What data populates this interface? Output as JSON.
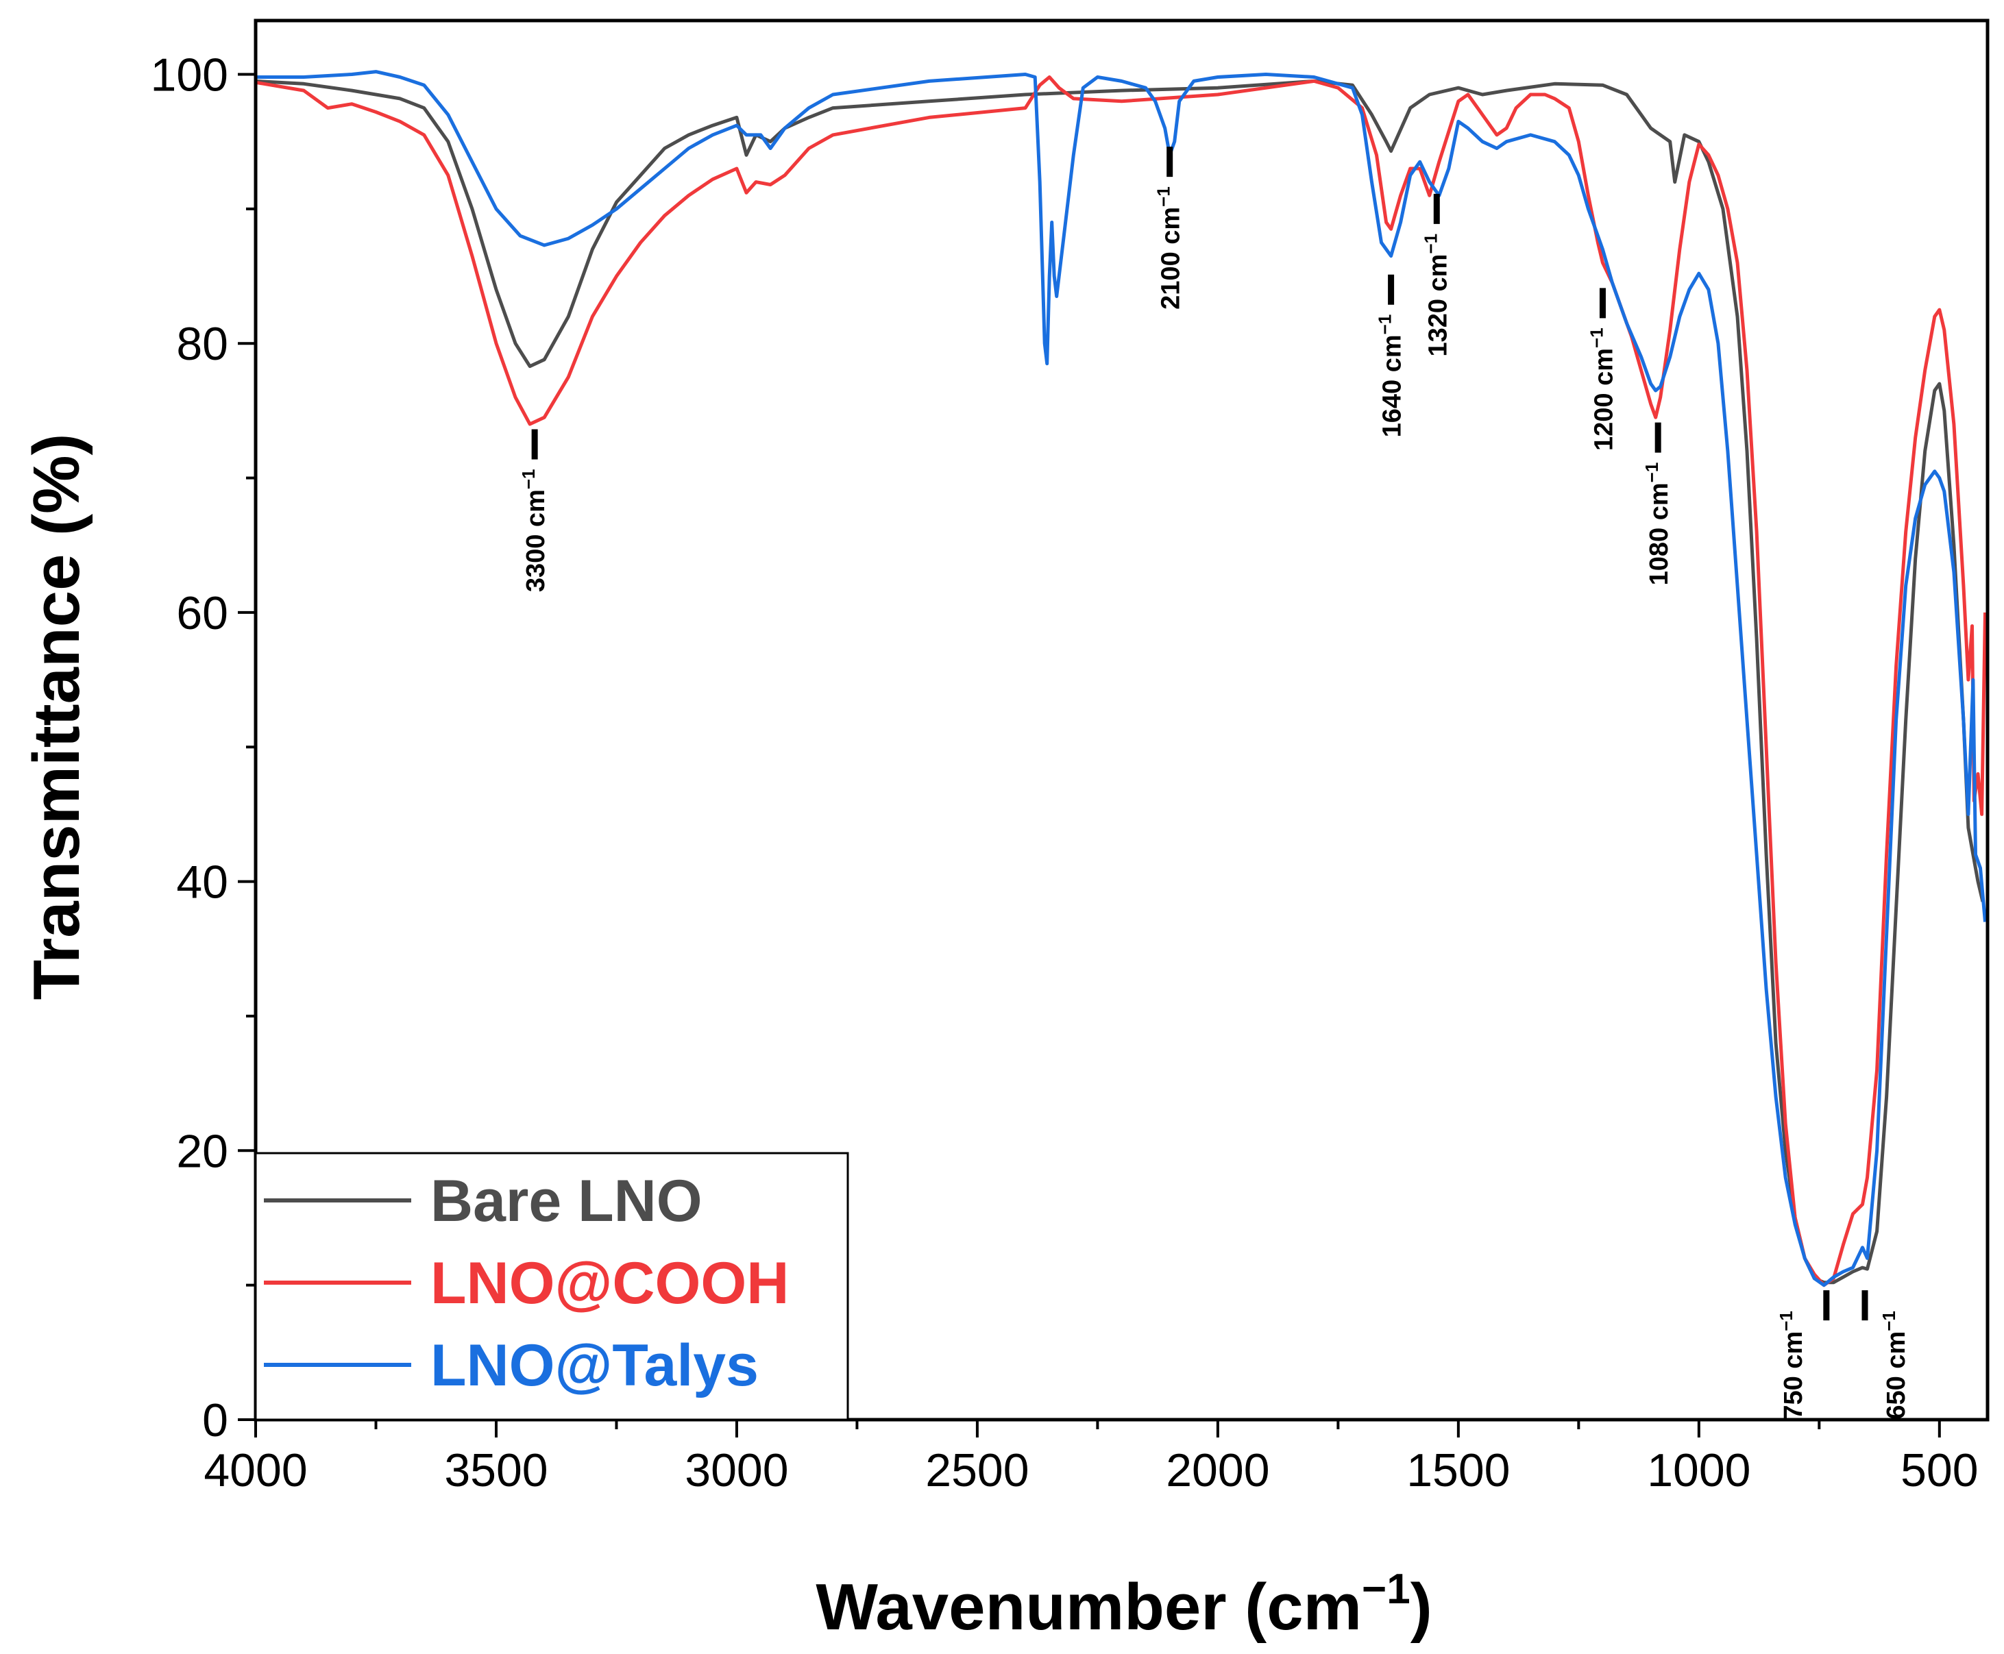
{
  "chart_data": {
    "type": "line",
    "title": "",
    "xlabel": "Wavenumber (cm",
    "xlabel_sup": "−1",
    "xlabel_suffix": ")",
    "ylabel": "Transmittance (%)",
    "xlim": [
      4000,
      400
    ],
    "ylim": [
      0,
      104
    ],
    "x_ticks": [
      4000,
      3500,
      3000,
      2500,
      2000,
      1500,
      1000,
      500
    ],
    "x_tick_labels": [
      "4000",
      "3500",
      "3000",
      "2500",
      "2000",
      "1500",
      "1000",
      "500"
    ],
    "y_ticks": [
      0,
      20,
      40,
      60,
      80,
      100
    ],
    "y_tick_labels": [
      "0",
      "20",
      "40",
      "60",
      "80",
      "100"
    ],
    "legend_position": "bottom-left",
    "grid": false,
    "series": [
      {
        "name": "Bare LNO",
        "color": "#4d4d4d",
        "points": [
          [
            4000,
            99.5
          ],
          [
            3900,
            99.3
          ],
          [
            3800,
            98.8
          ],
          [
            3700,
            98.2
          ],
          [
            3650,
            97.5
          ],
          [
            3600,
            95
          ],
          [
            3550,
            90
          ],
          [
            3500,
            84
          ],
          [
            3460,
            80
          ],
          [
            3430,
            78.3
          ],
          [
            3400,
            78.8
          ],
          [
            3350,
            82
          ],
          [
            3300,
            87
          ],
          [
            3250,
            90.5
          ],
          [
            3200,
            92.5
          ],
          [
            3150,
            94.5
          ],
          [
            3100,
            95.5
          ],
          [
            3050,
            96.2
          ],
          [
            3000,
            96.8
          ],
          [
            2980,
            94
          ],
          [
            2960,
            95.5
          ],
          [
            2930,
            95
          ],
          [
            2900,
            96
          ],
          [
            2850,
            96.8
          ],
          [
            2800,
            97.5
          ],
          [
            2600,
            98
          ],
          [
            2400,
            98.5
          ],
          [
            2200,
            98.8
          ],
          [
            2000,
            99
          ],
          [
            1800,
            99.5
          ],
          [
            1720,
            99.2
          ],
          [
            1680,
            97
          ],
          [
            1650,
            95
          ],
          [
            1640,
            94.3
          ],
          [
            1600,
            97.5
          ],
          [
            1560,
            98.5
          ],
          [
            1500,
            99
          ],
          [
            1450,
            98.5
          ],
          [
            1400,
            98.8
          ],
          [
            1300,
            99.3
          ],
          [
            1200,
            99.2
          ],
          [
            1150,
            98.5
          ],
          [
            1120,
            97
          ],
          [
            1100,
            96
          ],
          [
            1080,
            95.5
          ],
          [
            1060,
            95
          ],
          [
            1050,
            92
          ],
          [
            1030,
            95.5
          ],
          [
            1000,
            95
          ],
          [
            980,
            93.5
          ],
          [
            950,
            90
          ],
          [
            920,
            82
          ],
          [
            900,
            72
          ],
          [
            880,
            58
          ],
          [
            860,
            42
          ],
          [
            840,
            28
          ],
          [
            820,
            20
          ],
          [
            800,
            15
          ],
          [
            780,
            12
          ],
          [
            760,
            10.5
          ],
          [
            740,
            10.2
          ],
          [
            720,
            10.2
          ],
          [
            700,
            10.6
          ],
          [
            680,
            11
          ],
          [
            660,
            11.3
          ],
          [
            650,
            11.2
          ],
          [
            630,
            14
          ],
          [
            610,
            24
          ],
          [
            590,
            38
          ],
          [
            570,
            52
          ],
          [
            550,
            64
          ],
          [
            530,
            72
          ],
          [
            510,
            76.5
          ],
          [
            500,
            77
          ],
          [
            490,
            75
          ],
          [
            470,
            65
          ],
          [
            450,
            52
          ],
          [
            440,
            44
          ],
          [
            430,
            42
          ],
          [
            420,
            40
          ],
          [
            410,
            38.5
          ]
        ]
      },
      {
        "name": "LNO@COOH",
        "color": "#f0393b",
        "points": [
          [
            4000,
            99.4
          ],
          [
            3900,
            98.8
          ],
          [
            3850,
            97.5
          ],
          [
            3800,
            97.8
          ],
          [
            3750,
            97.2
          ],
          [
            3700,
            96.5
          ],
          [
            3650,
            95.5
          ],
          [
            3600,
            92.5
          ],
          [
            3550,
            86.5
          ],
          [
            3500,
            80
          ],
          [
            3460,
            76
          ],
          [
            3430,
            74
          ],
          [
            3400,
            74.5
          ],
          [
            3350,
            77.5
          ],
          [
            3300,
            82
          ],
          [
            3250,
            85
          ],
          [
            3200,
            87.5
          ],
          [
            3150,
            89.5
          ],
          [
            3100,
            91
          ],
          [
            3050,
            92.2
          ],
          [
            3000,
            93
          ],
          [
            2980,
            91.2
          ],
          [
            2960,
            92
          ],
          [
            2930,
            91.8
          ],
          [
            2900,
            92.5
          ],
          [
            2850,
            94.5
          ],
          [
            2800,
            95.5
          ],
          [
            2600,
            96.8
          ],
          [
            2400,
            97.5
          ],
          [
            2370,
            99.2
          ],
          [
            2350,
            99.8
          ],
          [
            2330,
            99
          ],
          [
            2300,
            98.2
          ],
          [
            2200,
            98
          ],
          [
            2000,
            98.5
          ],
          [
            1800,
            99.5
          ],
          [
            1750,
            99
          ],
          [
            1700,
            97.5
          ],
          [
            1670,
            94
          ],
          [
            1650,
            89
          ],
          [
            1640,
            88.5
          ],
          [
            1620,
            91
          ],
          [
            1600,
            93
          ],
          [
            1580,
            93
          ],
          [
            1560,
            91
          ],
          [
            1540,
            93.5
          ],
          [
            1500,
            98
          ],
          [
            1480,
            98.5
          ],
          [
            1450,
            97
          ],
          [
            1420,
            95.5
          ],
          [
            1400,
            96
          ],
          [
            1380,
            97.5
          ],
          [
            1350,
            98.5
          ],
          [
            1320,
            98.5
          ],
          [
            1300,
            98.2
          ],
          [
            1270,
            97.5
          ],
          [
            1250,
            95
          ],
          [
            1230,
            91
          ],
          [
            1210,
            87.5
          ],
          [
            1200,
            86
          ],
          [
            1180,
            84.5
          ],
          [
            1160,
            82.5
          ],
          [
            1140,
            80.5
          ],
          [
            1120,
            78
          ],
          [
            1100,
            75.5
          ],
          [
            1090,
            74.5
          ],
          [
            1080,
            76
          ],
          [
            1060,
            81
          ],
          [
            1040,
            87
          ],
          [
            1020,
            92
          ],
          [
            1000,
            94.8
          ],
          [
            980,
            94
          ],
          [
            960,
            92.5
          ],
          [
            940,
            90
          ],
          [
            920,
            86
          ],
          [
            900,
            78
          ],
          [
            880,
            66
          ],
          [
            860,
            50
          ],
          [
            840,
            34
          ],
          [
            820,
            22
          ],
          [
            800,
            15
          ],
          [
            780,
            12
          ],
          [
            760,
            10.8
          ],
          [
            740,
            10
          ],
          [
            720,
            10.5
          ],
          [
            700,
            13
          ],
          [
            680,
            15.3
          ],
          [
            660,
            16
          ],
          [
            650,
            18
          ],
          [
            630,
            26
          ],
          [
            610,
            42
          ],
          [
            590,
            56
          ],
          [
            570,
            66
          ],
          [
            550,
            73
          ],
          [
            530,
            78
          ],
          [
            510,
            82
          ],
          [
            500,
            82.5
          ],
          [
            490,
            81
          ],
          [
            470,
            74
          ],
          [
            450,
            62
          ],
          [
            440,
            55
          ],
          [
            432,
            59
          ],
          [
            428,
            46
          ],
          [
            420,
            48
          ],
          [
            412,
            45
          ],
          [
            405,
            60
          ]
        ]
      },
      {
        "name": "LNO@Talys",
        "color": "#1a6fdf",
        "points": [
          [
            4000,
            99.8
          ],
          [
            3900,
            99.8
          ],
          [
            3800,
            100
          ],
          [
            3750,
            100.2
          ],
          [
            3700,
            99.8
          ],
          [
            3650,
            99.2
          ],
          [
            3600,
            97
          ],
          [
            3550,
            93.5
          ],
          [
            3500,
            90
          ],
          [
            3450,
            88
          ],
          [
            3400,
            87.3
          ],
          [
            3350,
            87.8
          ],
          [
            3300,
            88.8
          ],
          [
            3250,
            90
          ],
          [
            3200,
            91.5
          ],
          [
            3150,
            93
          ],
          [
            3100,
            94.5
          ],
          [
            3050,
            95.5
          ],
          [
            3000,
            96.2
          ],
          [
            2980,
            95.5
          ],
          [
            2950,
            95.5
          ],
          [
            2930,
            94.5
          ],
          [
            2900,
            96
          ],
          [
            2850,
            97.5
          ],
          [
            2800,
            98.5
          ],
          [
            2600,
            99.5
          ],
          [
            2400,
            100
          ],
          [
            2380,
            99.8
          ],
          [
            2370,
            92
          ],
          [
            2360,
            80
          ],
          [
            2355,
            78.5
          ],
          [
            2350,
            85
          ],
          [
            2345,
            89
          ],
          [
            2340,
            85
          ],
          [
            2335,
            83.5
          ],
          [
            2320,
            88
          ],
          [
            2300,
            94
          ],
          [
            2280,
            99
          ],
          [
            2250,
            99.8
          ],
          [
            2200,
            99.5
          ],
          [
            2150,
            99
          ],
          [
            2130,
            98
          ],
          [
            2110,
            96
          ],
          [
            2100,
            94
          ],
          [
            2090,
            95
          ],
          [
            2080,
            98
          ],
          [
            2050,
            99.5
          ],
          [
            2000,
            99.8
          ],
          [
            1900,
            100
          ],
          [
            1800,
            99.8
          ],
          [
            1720,
            99
          ],
          [
            1700,
            97
          ],
          [
            1680,
            92
          ],
          [
            1660,
            87.5
          ],
          [
            1640,
            86.5
          ],
          [
            1620,
            89
          ],
          [
            1600,
            92.5
          ],
          [
            1580,
            93.5
          ],
          [
            1560,
            92
          ],
          [
            1540,
            91
          ],
          [
            1520,
            93
          ],
          [
            1500,
            96.5
          ],
          [
            1480,
            96
          ],
          [
            1450,
            95
          ],
          [
            1420,
            94.5
          ],
          [
            1400,
            95
          ],
          [
            1350,
            95.5
          ],
          [
            1300,
            95
          ],
          [
            1270,
            94
          ],
          [
            1250,
            92.5
          ],
          [
            1230,
            90
          ],
          [
            1200,
            87
          ],
          [
            1180,
            84.5
          ],
          [
            1150,
            81.5
          ],
          [
            1120,
            79
          ],
          [
            1100,
            77
          ],
          [
            1090,
            76.5
          ],
          [
            1080,
            76.8
          ],
          [
            1060,
            79
          ],
          [
            1040,
            82
          ],
          [
            1020,
            84
          ],
          [
            1000,
            85.2
          ],
          [
            980,
            84
          ],
          [
            960,
            80
          ],
          [
            940,
            72
          ],
          [
            920,
            62
          ],
          [
            900,
            52
          ],
          [
            880,
            42
          ],
          [
            860,
            32
          ],
          [
            840,
            24
          ],
          [
            820,
            18
          ],
          [
            800,
            14.5
          ],
          [
            780,
            12
          ],
          [
            760,
            10.5
          ],
          [
            740,
            10
          ],
          [
            720,
            10.6
          ],
          [
            700,
            11
          ],
          [
            680,
            11.3
          ],
          [
            660,
            12.8
          ],
          [
            650,
            12
          ],
          [
            630,
            20
          ],
          [
            610,
            36
          ],
          [
            590,
            52
          ],
          [
            570,
            62
          ],
          [
            550,
            67
          ],
          [
            530,
            69.5
          ],
          [
            510,
            70.5
          ],
          [
            500,
            70
          ],
          [
            490,
            69
          ],
          [
            470,
            63
          ],
          [
            450,
            52
          ],
          [
            440,
            45
          ],
          [
            430,
            55
          ],
          [
            425,
            42
          ],
          [
            415,
            41
          ],
          [
            405,
            37
          ]
        ]
      }
    ],
    "annotations": [
      {
        "label": "3300 cm",
        "sup": "−1",
        "x": 3420,
        "y": 72.5,
        "side": "below"
      },
      {
        "label": "2100 cm",
        "sup": "−1",
        "x": 2100,
        "y": 93.5,
        "side": "below"
      },
      {
        "label": "1640 cm",
        "sup": "−1",
        "x": 1640,
        "y": 84,
        "side": "below"
      },
      {
        "label": "1320 cm",
        "sup": "−1",
        "x": 1545,
        "y": 90,
        "side": "below"
      },
      {
        "label": "1200 cm",
        "sup": "−1",
        "x": 1200,
        "y": 83,
        "side": "below"
      },
      {
        "label": "1080 cm",
        "sup": "−1",
        "x": 1085,
        "y": 73,
        "side": "below"
      },
      {
        "label": "750 cm",
        "sup": "−1",
        "x": 735,
        "y": 8.5,
        "side": "left"
      },
      {
        "label": "650 cm",
        "sup": "−1",
        "x": 655,
        "y": 8.5,
        "side": "right"
      }
    ]
  }
}
